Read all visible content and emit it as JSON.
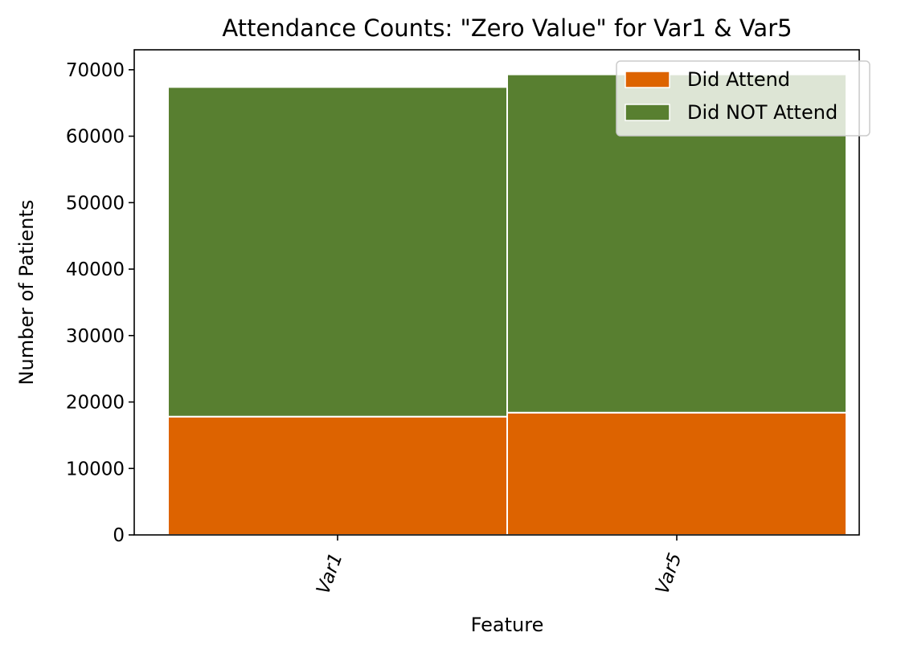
{
  "chart_data": {
    "type": "bar",
    "stacked": true,
    "title": "Attendance Counts: \"Zero Value\" for Var1 & Var5",
    "xlabel": "Feature",
    "ylabel": "Number of Patients",
    "categories": [
      "Var1",
      "Var5"
    ],
    "series": [
      {
        "name": "Did Attend",
        "color": "#dd6300",
        "values": [
          17800,
          18400
        ]
      },
      {
        "name": "Did NOT Attend",
        "color": "#587f30",
        "values": [
          49600,
          50900
        ]
      }
    ],
    "ylim": [
      0,
      73000
    ],
    "yticks": [
      0,
      10000,
      20000,
      30000,
      40000,
      50000,
      60000,
      70000
    ],
    "ytick_labels": [
      "0",
      "10000",
      "20000",
      "30000",
      "40000",
      "50000",
      "60000",
      "70000"
    ],
    "xtick_rotation": -70,
    "grid": false,
    "legend_position": "top-right"
  }
}
